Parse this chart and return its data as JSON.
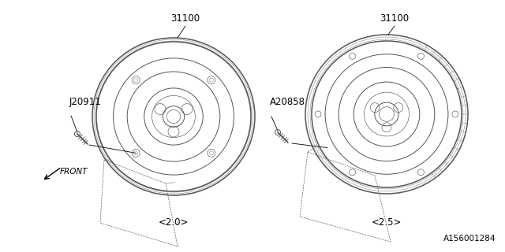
{
  "background_color": "#ffffff",
  "line_color": "#555555",
  "label_color": "#000000",
  "part_number_left": "31100",
  "part_number_right": "31100",
  "label_left_bolt": "J20911",
  "label_right_bolt": "A20858",
  "caption_left": "<2.0>",
  "caption_right": "<2.5>",
  "front_label": "FRONT",
  "catalog_number": "A156001284",
  "lw_outer": 1.1,
  "lw_inner": 0.7,
  "lw_thin": 0.45,
  "lw_label": 0.5
}
